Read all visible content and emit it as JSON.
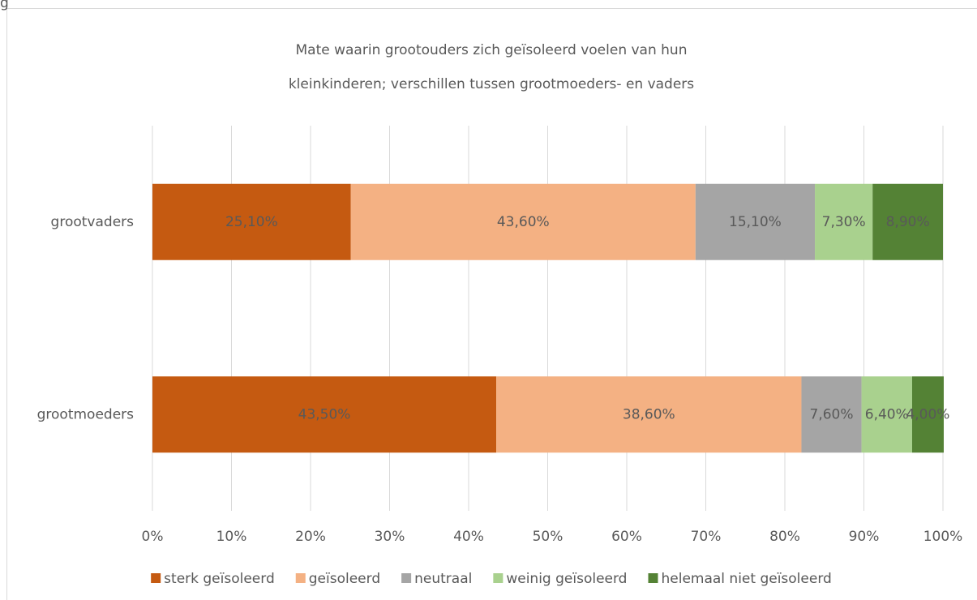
{
  "corner_text": "g",
  "chart_data": {
    "type": "stacked_barh",
    "title": [
      "Mate waarin grootouders zich geïsoleerd voelen van hun",
      "kleinkinderen; verschillen tussen grootmoeders- en vaders"
    ],
    "categories": [
      "grootvaders",
      "grootmoeders"
    ],
    "series": [
      {
        "name": "sterk geïsoleerd",
        "color": "#c55a11",
        "values": [
          25.1,
          43.5
        ],
        "value_labels": [
          "25,10%",
          "43,50%"
        ]
      },
      {
        "name": "geïsoleerd",
        "color": "#f4b183",
        "values": [
          43.6,
          38.6
        ],
        "value_labels": [
          "43,60%",
          "38,60%"
        ]
      },
      {
        "name": "neutraal",
        "color": "#a5a5a5",
        "values": [
          15.1,
          7.6
        ],
        "value_labels": [
          "15,10%",
          "7,60%"
        ]
      },
      {
        "name": "weinig geïsoleerd",
        "color": "#a9d18e",
        "values": [
          7.3,
          6.4
        ],
        "value_labels": [
          "7,30%",
          "6,40%"
        ]
      },
      {
        "name": "helemaal niet geïsoleerd",
        "color": "#548235",
        "values": [
          8.9,
          4.0
        ],
        "value_labels": [
          "8,90%",
          "4,00%"
        ]
      }
    ],
    "xlim": [
      0,
      100
    ],
    "xticks": [
      {
        "value": 0,
        "label": "0%"
      },
      {
        "value": 10,
        "label": "10%"
      },
      {
        "value": 20,
        "label": "20%"
      },
      {
        "value": 30,
        "label": "30%"
      },
      {
        "value": 40,
        "label": "40%"
      },
      {
        "value": 50,
        "label": "50%"
      },
      {
        "value": 60,
        "label": "60%"
      },
      {
        "value": 70,
        "label": "70%"
      },
      {
        "value": 80,
        "label": "80%"
      },
      {
        "value": 90,
        "label": "90%"
      },
      {
        "value": 100,
        "label": "100%"
      }
    ],
    "grid": true,
    "legend": "bottom"
  }
}
